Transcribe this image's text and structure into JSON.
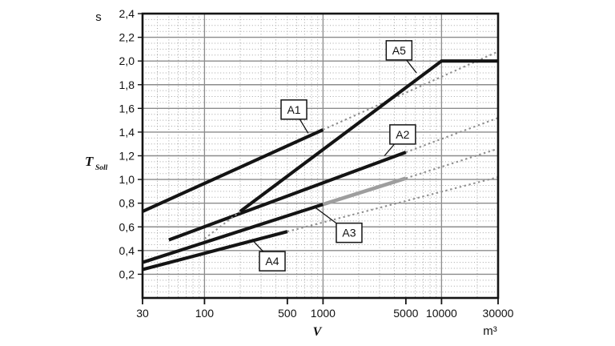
{
  "chart_data": {
    "type": "line",
    "title": "",
    "x_axis": {
      "scale": "log",
      "label": "V",
      "unit": "m³",
      "range": [
        30,
        30000
      ],
      "ticks": [
        30,
        100,
        500,
        1000,
        5000,
        10000,
        30000
      ],
      "tick_labels": [
        "30",
        "100",
        "500",
        "1000",
        "5000",
        "10000",
        "30000"
      ],
      "major_gridlines": [
        100,
        1000,
        10000
      ]
    },
    "y_axis": {
      "scale": "linear",
      "label": "T",
      "label_sub": "Soll",
      "unit": "s",
      "range": [
        0,
        2.4
      ],
      "ticks": [
        0.2,
        0.4,
        0.6,
        0.8,
        1.0,
        1.2,
        1.4,
        1.6,
        1.8,
        2.0,
        2.2,
        2.4
      ],
      "tick_labels": [
        "0,2",
        "0,4",
        "0,6",
        "0,8",
        "1,0",
        "1,2",
        "1,4",
        "1,6",
        "1,8",
        "2,0",
        "2,2",
        "2,4"
      ],
      "minor_step": 0.05,
      "major_step": 0.2
    },
    "grid": {
      "minor": "dotted",
      "major": "solid"
    },
    "series": [
      {
        "id": "A1",
        "segments": [
          {
            "style": "solid",
            "points": [
              [
                30,
                0.73
              ],
              [
                1000,
                1.42
              ]
            ]
          },
          {
            "style": "dotted",
            "points": [
              [
                1000,
                1.42
              ],
              [
                30000,
                2.08
              ]
            ]
          }
        ]
      },
      {
        "id": "A2",
        "segments": [
          {
            "style": "solid",
            "points": [
              [
                50,
                0.49
              ],
              [
                5000,
                1.23
              ]
            ]
          },
          {
            "style": "dotted",
            "points": [
              [
                5000,
                1.23
              ],
              [
                30000,
                1.52
              ]
            ]
          }
        ]
      },
      {
        "id": "A3",
        "segments": [
          {
            "style": "solid",
            "points": [
              [
                30,
                0.3
              ],
              [
                1000,
                0.79
              ]
            ]
          },
          {
            "style": "solid-gray",
            "points": [
              [
                1000,
                0.79
              ],
              [
                5000,
                1.01
              ]
            ]
          },
          {
            "style": "dotted",
            "points": [
              [
                5000,
                1.01
              ],
              [
                30000,
                1.26
              ]
            ]
          }
        ]
      },
      {
        "id": "A4",
        "segments": [
          {
            "style": "solid",
            "points": [
              [
                30,
                0.24
              ],
              [
                500,
                0.56
              ]
            ]
          },
          {
            "style": "dotted",
            "points": [
              [
                500,
                0.56
              ],
              [
                30000,
                1.02
              ]
            ]
          }
        ]
      },
      {
        "id": "A5",
        "segments": [
          {
            "style": "dotted",
            "points": [
              [
                100,
                0.5
              ],
              [
                200,
                0.73
              ]
            ]
          },
          {
            "style": "solid",
            "points": [
              [
                200,
                0.73
              ],
              [
                10000,
                2.0
              ],
              [
                30000,
                2.0
              ]
            ]
          }
        ]
      }
    ],
    "annotations": [
      {
        "label": "A1",
        "box_at": [
          568,
          1.59
        ],
        "attach": [
          750,
          1.39
        ]
      },
      {
        "label": "A2",
        "box_at": [
          4700,
          1.38
        ],
        "attach": [
          3300,
          1.2
        ]
      },
      {
        "label": "A3",
        "box_at": [
          1660,
          0.55
        ],
        "attach": [
          870,
          0.76
        ]
      },
      {
        "label": "A4",
        "box_at": [
          373,
          0.31
        ],
        "attach": [
          253,
          0.49
        ]
      },
      {
        "label": "A5",
        "box_at": [
          4380,
          2.09
        ],
        "attach": [
          6140,
          1.9
        ]
      }
    ],
    "colors": {
      "line": "#141414",
      "gray_line": "#9e9e9e",
      "dotted_ext": "#8f8f8f",
      "grid_major": "#8c8c8c",
      "grid_minor": "#a6a6a6",
      "frame": "#141414",
      "box_fill": "#ffffff",
      "box_border": "#141414"
    }
  }
}
